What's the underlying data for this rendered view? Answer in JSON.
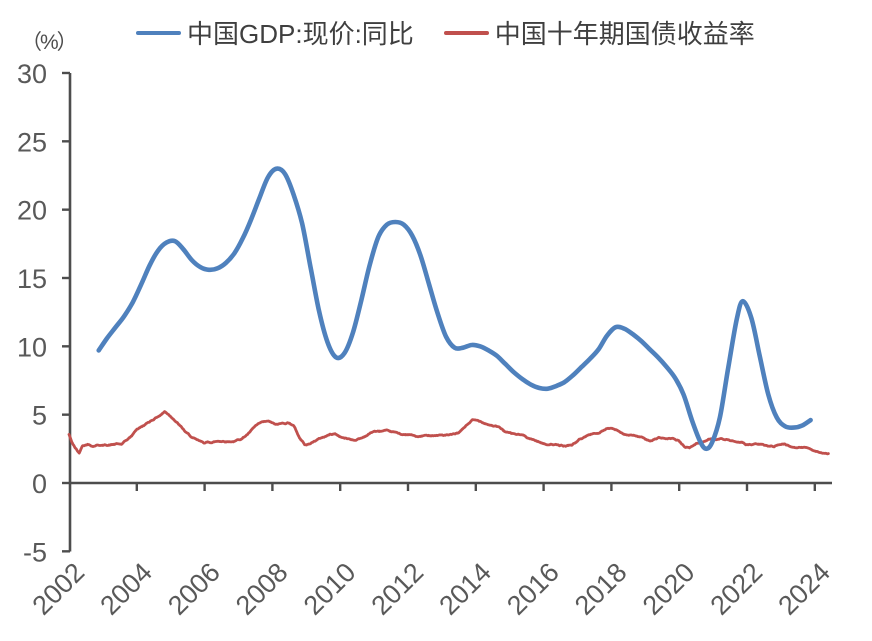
{
  "chart_data": {
    "type": "line",
    "title": "",
    "ylabel": "（%）",
    "xlabel": "",
    "grid": false,
    "legend_position": "top",
    "ylim": [
      -5,
      30
    ],
    "yticks": [
      30,
      25,
      20,
      15,
      10,
      5,
      0,
      -5
    ],
    "xlim": [
      2002,
      2024.5
    ],
    "xticks": [
      2002,
      2004,
      2006,
      2008,
      2010,
      2012,
      2014,
      2016,
      2018,
      2020,
      2022,
      2024
    ],
    "axis_color": "#4d4d4d",
    "tick_label_color": "#595959",
    "series": [
      {
        "name": "中国GDP:现价:同比",
        "color": "#4F81BD",
        "style": "smooth",
        "points": [
          [
            2002.875,
            9.7
          ],
          [
            2003.125,
            10.6
          ],
          [
            2003.375,
            11.4
          ],
          [
            2003.625,
            12.2
          ],
          [
            2003.875,
            13.2
          ],
          [
            2004.125,
            14.5
          ],
          [
            2004.375,
            15.9
          ],
          [
            2004.625,
            17.0
          ],
          [
            2004.875,
            17.6
          ],
          [
            2005.125,
            17.7
          ],
          [
            2005.375,
            17.1
          ],
          [
            2005.625,
            16.3
          ],
          [
            2005.875,
            15.8
          ],
          [
            2006.125,
            15.6
          ],
          [
            2006.375,
            15.7
          ],
          [
            2006.625,
            16.1
          ],
          [
            2006.875,
            16.8
          ],
          [
            2007.125,
            17.9
          ],
          [
            2007.375,
            19.3
          ],
          [
            2007.625,
            20.9
          ],
          [
            2007.875,
            22.4
          ],
          [
            2008.125,
            23.0
          ],
          [
            2008.375,
            22.6
          ],
          [
            2008.625,
            21.1
          ],
          [
            2008.875,
            19.0
          ],
          [
            2009.125,
            15.8
          ],
          [
            2009.375,
            12.6
          ],
          [
            2009.625,
            10.3
          ],
          [
            2009.875,
            9.2
          ],
          [
            2010.125,
            9.5
          ],
          [
            2010.375,
            11.0
          ],
          [
            2010.625,
            13.4
          ],
          [
            2010.875,
            16.0
          ],
          [
            2011.125,
            18.0
          ],
          [
            2011.375,
            18.9
          ],
          [
            2011.625,
            19.1
          ],
          [
            2011.875,
            18.9
          ],
          [
            2012.125,
            18.1
          ],
          [
            2012.375,
            16.6
          ],
          [
            2012.625,
            14.5
          ],
          [
            2012.875,
            12.4
          ],
          [
            2013.125,
            10.7
          ],
          [
            2013.375,
            9.9
          ],
          [
            2013.625,
            9.9
          ],
          [
            2013.875,
            10.1
          ],
          [
            2014.125,
            10.0
          ],
          [
            2014.375,
            9.7
          ],
          [
            2014.625,
            9.3
          ],
          [
            2014.875,
            8.7
          ],
          [
            2015.125,
            8.1
          ],
          [
            2015.375,
            7.6
          ],
          [
            2015.625,
            7.2
          ],
          [
            2015.875,
            6.95
          ],
          [
            2016.125,
            6.9
          ],
          [
            2016.375,
            7.1
          ],
          [
            2016.625,
            7.4
          ],
          [
            2016.875,
            7.9
          ],
          [
            2017.125,
            8.5
          ],
          [
            2017.375,
            9.1
          ],
          [
            2017.625,
            9.8
          ],
          [
            2017.875,
            10.8
          ],
          [
            2018.125,
            11.4
          ],
          [
            2018.375,
            11.3
          ],
          [
            2018.625,
            10.9
          ],
          [
            2018.875,
            10.4
          ],
          [
            2019.125,
            9.8
          ],
          [
            2019.375,
            9.2
          ],
          [
            2019.625,
            8.5
          ],
          [
            2019.875,
            7.7
          ],
          [
            2020.125,
            6.5
          ],
          [
            2020.375,
            4.6
          ],
          [
            2020.625,
            3.0
          ],
          [
            2020.8,
            2.5
          ],
          [
            2020.975,
            3.0
          ],
          [
            2021.2,
            4.8
          ],
          [
            2021.45,
            8.5
          ],
          [
            2021.7,
            12.0
          ],
          [
            2021.875,
            13.3
          ],
          [
            2022.125,
            12.1
          ],
          [
            2022.375,
            9.3
          ],
          [
            2022.625,
            6.5
          ],
          [
            2022.875,
            4.8
          ],
          [
            2023.125,
            4.15
          ],
          [
            2023.375,
            4.05
          ],
          [
            2023.625,
            4.2
          ],
          [
            2023.875,
            4.6
          ]
        ]
      },
      {
        "name": "中国十年期国债收益率",
        "color": "#C0504D",
        "style": "noisy",
        "points": [
          [
            2002.0,
            3.55
          ],
          [
            2002.08,
            3.0
          ],
          [
            2002.18,
            2.55
          ],
          [
            2002.3,
            2.15
          ],
          [
            2002.4,
            2.75
          ],
          [
            2002.55,
            2.9
          ],
          [
            2002.7,
            2.75
          ],
          [
            2002.85,
            2.85
          ],
          [
            2003.0,
            2.8
          ],
          [
            2003.2,
            2.85
          ],
          [
            2003.4,
            2.9
          ],
          [
            2003.55,
            2.85
          ],
          [
            2003.7,
            3.1
          ],
          [
            2003.85,
            3.4
          ],
          [
            2004.0,
            3.9
          ],
          [
            2004.15,
            4.1
          ],
          [
            2004.35,
            4.4
          ],
          [
            2004.55,
            4.75
          ],
          [
            2004.7,
            5.0
          ],
          [
            2004.82,
            5.25
          ],
          [
            2004.95,
            5.05
          ],
          [
            2005.1,
            4.7
          ],
          [
            2005.25,
            4.3
          ],
          [
            2005.45,
            3.7
          ],
          [
            2005.65,
            3.25
          ],
          [
            2005.85,
            3.0
          ],
          [
            2006.0,
            2.9
          ],
          [
            2006.2,
            2.95
          ],
          [
            2006.45,
            3.05
          ],
          [
            2006.7,
            3.1
          ],
          [
            2006.9,
            3.1
          ],
          [
            2007.1,
            3.3
          ],
          [
            2007.3,
            3.7
          ],
          [
            2007.5,
            4.15
          ],
          [
            2007.7,
            4.4
          ],
          [
            2007.9,
            4.45
          ],
          [
            2008.1,
            4.2
          ],
          [
            2008.3,
            4.3
          ],
          [
            2008.5,
            4.4
          ],
          [
            2008.65,
            4.1
          ],
          [
            2008.8,
            3.3
          ],
          [
            2008.95,
            2.85
          ],
          [
            2009.1,
            2.9
          ],
          [
            2009.3,
            3.2
          ],
          [
            2009.5,
            3.4
          ],
          [
            2009.7,
            3.6
          ],
          [
            2009.85,
            3.65
          ],
          [
            2010.0,
            3.45
          ],
          [
            2010.2,
            3.3
          ],
          [
            2010.45,
            3.2
          ],
          [
            2010.65,
            3.35
          ],
          [
            2010.85,
            3.65
          ],
          [
            2011.0,
            3.85
          ],
          [
            2011.15,
            3.8
          ],
          [
            2011.3,
            3.85
          ],
          [
            2011.5,
            3.7
          ],
          [
            2011.7,
            3.6
          ],
          [
            2011.9,
            3.5
          ],
          [
            2012.1,
            3.45
          ],
          [
            2012.3,
            3.3
          ],
          [
            2012.5,
            3.4
          ],
          [
            2012.7,
            3.5
          ],
          [
            2012.9,
            3.55
          ],
          [
            2013.1,
            3.55
          ],
          [
            2013.3,
            3.5
          ],
          [
            2013.5,
            3.6
          ],
          [
            2013.7,
            4.1
          ],
          [
            2013.9,
            4.55
          ],
          [
            2014.05,
            4.5
          ],
          [
            2014.25,
            4.4
          ],
          [
            2014.45,
            4.3
          ],
          [
            2014.65,
            4.15
          ],
          [
            2014.85,
            3.8
          ],
          [
            2015.05,
            3.6
          ],
          [
            2015.25,
            3.5
          ],
          [
            2015.45,
            3.4
          ],
          [
            2015.65,
            3.2
          ],
          [
            2015.85,
            3.05
          ],
          [
            2016.05,
            2.85
          ],
          [
            2016.25,
            2.9
          ],
          [
            2016.45,
            2.75
          ],
          [
            2016.65,
            2.68
          ],
          [
            2016.85,
            2.8
          ],
          [
            2017.05,
            3.15
          ],
          [
            2017.25,
            3.4
          ],
          [
            2017.45,
            3.6
          ],
          [
            2017.65,
            3.65
          ],
          [
            2017.85,
            3.9
          ],
          [
            2018.0,
            3.93
          ],
          [
            2018.2,
            3.75
          ],
          [
            2018.4,
            3.6
          ],
          [
            2018.6,
            3.5
          ],
          [
            2018.8,
            3.4
          ],
          [
            2019.0,
            3.15
          ],
          [
            2019.2,
            3.1
          ],
          [
            2019.4,
            3.3
          ],
          [
            2019.6,
            3.15
          ],
          [
            2019.8,
            3.2
          ],
          [
            2020.0,
            3.0
          ],
          [
            2020.15,
            2.6
          ],
          [
            2020.3,
            2.5
          ],
          [
            2020.5,
            2.8
          ],
          [
            2020.7,
            3.0
          ],
          [
            2020.9,
            3.2
          ],
          [
            2021.1,
            3.2
          ],
          [
            2021.3,
            3.15
          ],
          [
            2021.5,
            3.05
          ],
          [
            2021.7,
            2.9
          ],
          [
            2021.85,
            2.95
          ],
          [
            2022.0,
            2.8
          ],
          [
            2022.2,
            2.8
          ],
          [
            2022.4,
            2.78
          ],
          [
            2022.6,
            2.65
          ],
          [
            2022.8,
            2.7
          ],
          [
            2022.95,
            2.85
          ],
          [
            2023.1,
            2.88
          ],
          [
            2023.3,
            2.72
          ],
          [
            2023.5,
            2.65
          ],
          [
            2023.7,
            2.62
          ],
          [
            2023.85,
            2.56
          ],
          [
            2024.0,
            2.42
          ],
          [
            2024.2,
            2.28
          ],
          [
            2024.4,
            2.18
          ]
        ]
      }
    ]
  }
}
